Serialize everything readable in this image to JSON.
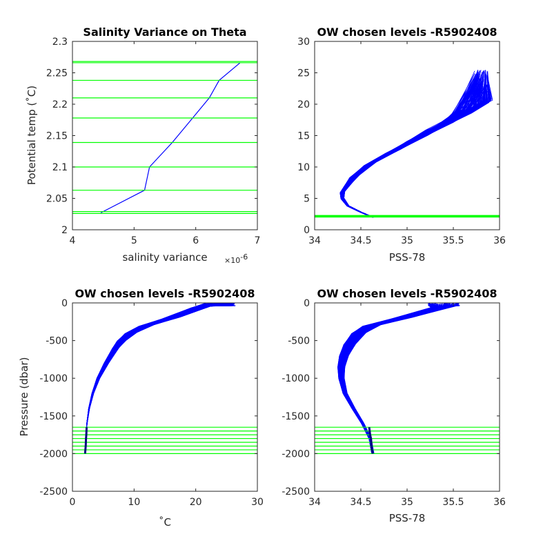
{
  "colors": {
    "profile": "#0000ff",
    "level": "#00ff00",
    "marker": "#000080",
    "axis": "#262626"
  },
  "chart_data": [
    {
      "type": "line",
      "title": "Salinity Variance on Theta",
      "xlabel": "salinity variance",
      "x_exponent_base": "×10",
      "x_exponent_power": "-6",
      "ylabel": "Potential temp (˚C)",
      "xlim": [
        4,
        7
      ],
      "ylim": [
        2,
        2.3
      ],
      "xticks": [
        4,
        5,
        6,
        7
      ],
      "xticklabels": [
        "4",
        "5",
        "6",
        "7"
      ],
      "yticks": [
        2,
        2.05,
        2.1,
        2.15,
        2.2,
        2.25,
        2.3
      ],
      "yticklabels": [
        "2",
        "2.05",
        "2.1",
        "2.15",
        "2.2",
        "2.25",
        "2.3"
      ],
      "series": [
        {
          "x": [
            4.46,
            5.17,
            5.25,
            5.62,
            5.95,
            6.22,
            6.38,
            6.72
          ],
          "y": [
            2.027,
            2.063,
            2.1,
            2.139,
            2.178,
            2.21,
            2.238,
            2.266
          ]
        }
      ],
      "hlines": [
        2.026,
        2.029,
        2.063,
        2.1,
        2.139,
        2.178,
        2.21,
        2.238,
        2.266,
        2.268
      ]
    },
    {
      "type": "line",
      "title": "OW chosen levels -R5902408",
      "xlabel": "PSS-78",
      "ylabel": "",
      "xlim": [
        34,
        36
      ],
      "ylim": [
        0,
        30
      ],
      "xticks": [
        34,
        34.5,
        35,
        35.5,
        36
      ],
      "xticklabels": [
        "34",
        "34.5",
        "35",
        "35.5",
        "36"
      ],
      "yticks": [
        0,
        5,
        10,
        15,
        20,
        25,
        30
      ],
      "yticklabels": [
        "0",
        "5",
        "10",
        "15",
        "20",
        "25",
        "30"
      ],
      "profile_median": {
        "x": [
          34.63,
          34.5,
          34.36,
          34.3,
          34.3,
          34.36,
          34.43,
          34.6,
          34.85,
          35.1,
          35.35,
          35.55,
          35.7
        ],
        "y": [
          2.0,
          2.8,
          3.8,
          5.0,
          6.0,
          7.2,
          8.5,
          10.5,
          12.5,
          14.5,
          16.5,
          18.0,
          19.5
        ]
      },
      "profile_count": 180,
      "hlines": [
        2.026,
        2.029,
        2.063,
        2.1,
        2.139,
        2.178,
        2.21,
        2.238,
        2.266,
        2.268
      ]
    },
    {
      "type": "line",
      "title": "OW chosen levels -R5902408",
      "xlabel": "˚C",
      "ylabel": "Pressure (dbar)",
      "xlim": [
        0,
        30
      ],
      "ylim": [
        -2500,
        0
      ],
      "xticks": [
        0,
        10,
        20,
        30
      ],
      "xticklabels": [
        "0",
        "10",
        "20",
        "30"
      ],
      "yticks": [
        0,
        -500,
        -1000,
        -1500,
        -2000,
        -2500
      ],
      "yticklabels": [
        "0",
        "-500",
        "-1000",
        "-1500",
        "-2000",
        "-2500"
      ],
      "profile_median": {
        "x": [
          2.05,
          2.15,
          2.35,
          2.7,
          3.3,
          4.2,
          5.5,
          7.0,
          8.0,
          9.5,
          12.0,
          16.0,
          21.0
        ],
        "y": [
          -2000,
          -1800,
          -1600,
          -1400,
          -1200,
          -1000,
          -800,
          -600,
          -500,
          -400,
          -300,
          -200,
          -50
        ]
      },
      "profile_count": 180,
      "hlines": [
        -1650,
        -1700,
        -1750,
        -1800,
        -1850,
        -1900,
        -1950,
        -2000
      ],
      "chosen_points": {
        "x": [
          2.05,
          2.1,
          2.15,
          2.2,
          2.25,
          2.3
        ],
        "y": [
          -2000,
          -1950,
          -1900,
          -1800,
          -1750,
          -1650
        ]
      }
    },
    {
      "type": "line",
      "title": "OW chosen levels -R5902408",
      "xlabel": "PSS-78",
      "ylabel": "",
      "xlim": [
        34,
        36
      ],
      "ylim": [
        -2500,
        0
      ],
      "xticks": [
        34,
        34.5,
        35,
        35.5,
        36
      ],
      "xticklabels": [
        "34",
        "34.5",
        "35",
        "35.5",
        "36"
      ],
      "yticks": [
        0,
        -500,
        -1000,
        -1500,
        -2000,
        -2500
      ],
      "yticklabels": [
        "0",
        "-500",
        "-1000",
        "-1500",
        "-2000",
        "-2500"
      ],
      "profile_median": {
        "x": [
          34.63,
          34.6,
          34.52,
          34.42,
          34.33,
          34.29,
          34.29,
          34.32,
          34.38,
          34.48,
          34.62,
          34.95,
          35.4
        ],
        "y": [
          -2000,
          -1800,
          -1600,
          -1400,
          -1200,
          -1000,
          -850,
          -700,
          -550,
          -400,
          -300,
          -200,
          -50
        ]
      },
      "profile_count": 180,
      "hlines": [
        -1650,
        -1700,
        -1750,
        -1800,
        -1850,
        -1900,
        -1950,
        -2000
      ],
      "chosen_points": {
        "x": [
          34.63,
          34.62,
          34.615,
          34.61,
          34.6,
          34.59
        ],
        "y": [
          -2000,
          -1950,
          -1900,
          -1800,
          -1750,
          -1650
        ]
      }
    }
  ]
}
